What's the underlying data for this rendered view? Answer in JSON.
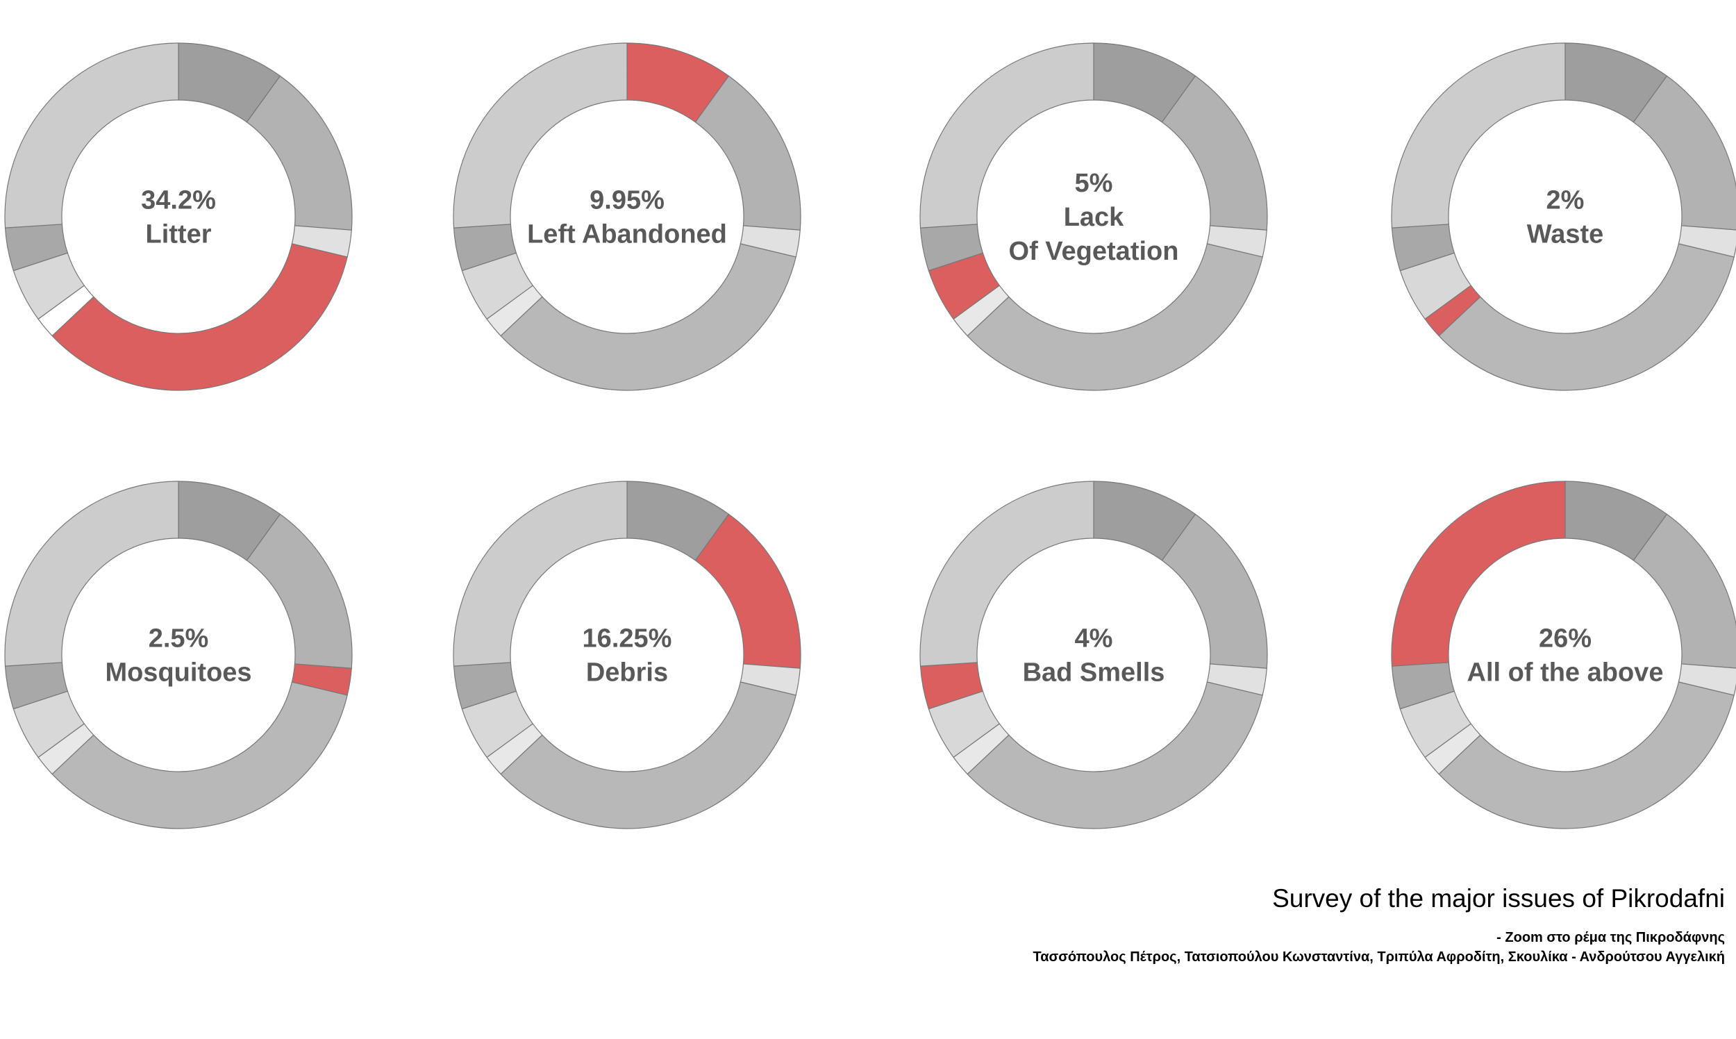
{
  "chart_data": [
    {
      "type": "pie",
      "label": "Litter",
      "percent_label": "34.2%",
      "highlight_value": 34.2
    },
    {
      "type": "pie",
      "label": "Left Abandoned",
      "percent_label": "9.95%",
      "highlight_value": 9.95
    },
    {
      "type": "pie",
      "label": "Lack Of Vegetation",
      "label_lines": [
        "Lack",
        "Of Vegetation"
      ],
      "percent_label": "5%",
      "highlight_value": 5
    },
    {
      "type": "pie",
      "label": "Waste",
      "percent_label": "2%",
      "highlight_value": 2
    },
    {
      "type": "pie",
      "label": "Mosquitoes",
      "percent_label": "2.5%",
      "highlight_value": 2.5
    },
    {
      "type": "pie",
      "label": "Debris",
      "percent_label": "16.25%",
      "highlight_value": 16.25
    },
    {
      "type": "pie",
      "label": "Bad Smells",
      "percent_label": "4%",
      "highlight_value": 4
    },
    {
      "type": "pie",
      "label": "All of the above",
      "percent_label": "26%",
      "highlight_value": 26
    }
  ],
  "slice_order": [
    "Left Abandoned",
    "Debris",
    "Mosquitoes",
    "Litter",
    "Waste",
    "Lack Of Vegetation",
    "Bad Smells",
    "All of the above"
  ],
  "slice_values": [
    9.95,
    16.25,
    2.5,
    34.2,
    2,
    5,
    4,
    26
  ],
  "colors": {
    "highlight": "#dc5f5f",
    "segments": [
      "#9e9e9e",
      "#b2b2b2",
      "#e1e1e1",
      "#b8b8b8",
      "#e8e8e8",
      "#d8d8d8",
      "#a8a8a8",
      "#cccccc"
    ],
    "highlight_in_first_chart": [
      "#9e9e9e",
      "#b2b2b2",
      "#e1e1e1",
      "#b8b8b8",
      "#ffffff",
      "#d8d8d8",
      "#a8a8a8",
      "#cccccc"
    ],
    "outline": "#777777"
  },
  "footer": {
    "title": "Survey of the major issues of Pikrodafni",
    "subtitle": "- Zoom στο ρέμα της Πικροδάφνης",
    "authors": "Τασσόπουλος Πέτρος, Τατσιοπούλου Κωνσταντίνα, Τριπύλα Αφροδίτη, Σκουλίκα - Ανδρούτσου Αγγελική"
  }
}
